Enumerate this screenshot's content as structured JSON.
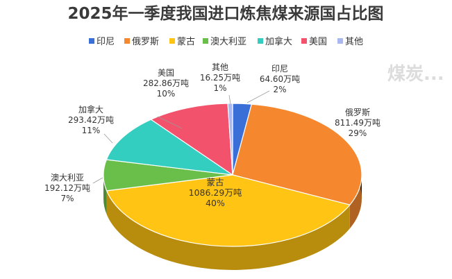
{
  "chart_data": {
    "type": "pie",
    "title": "2025年一季度我国进口炼焦煤来源国占比图",
    "unit": "万吨",
    "legend_position": "top",
    "slices": [
      {
        "name": "印尼",
        "value": 64.6,
        "value_label": "64.60万吨",
        "percent_label": "2%",
        "color": "#3b6fd8"
      },
      {
        "name": "俄罗斯",
        "value": 811.49,
        "value_label": "811.49万吨",
        "percent_label": "29%",
        "color": "#f5882f"
      },
      {
        "name": "蒙古",
        "value": 1086.29,
        "value_label": "1086.29万吨",
        "percent_label": "40%",
        "color": "#ffc414"
      },
      {
        "name": "澳大利亚",
        "value": 192.12,
        "value_label": "192.12万吨",
        "percent_label": "7%",
        "color": "#6abf4b"
      },
      {
        "name": "加拿大",
        "value": 293.42,
        "value_label": "293.42万吨",
        "percent_label": "11%",
        "color": "#33cec0"
      },
      {
        "name": "美国",
        "value": 282.86,
        "value_label": "282.86万吨",
        "percent_label": "10%",
        "color": "#f2526b"
      },
      {
        "name": "其他",
        "value": 16.25,
        "value_label": "16.25万吨",
        "percent_label": "1%",
        "color": "#a9b8f0"
      }
    ]
  },
  "watermark": "煤炭..."
}
